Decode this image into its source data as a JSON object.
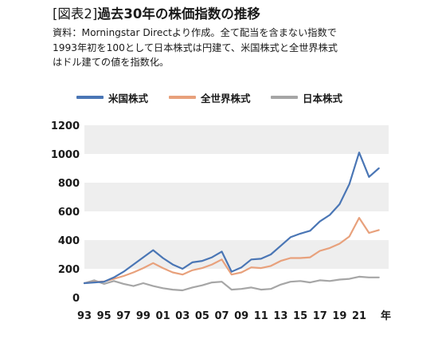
{
  "header": {
    "tag": "[図表2]",
    "title": "過去30年の株価指数の推移",
    "desc_lines": [
      "資料：Morningstar Directより作成。全て配当を含まない指数で",
      "1993年初を100として日本株式は円建て、米国株式と全世界株式",
      "はドル建ての値を指数化。"
    ]
  },
  "legend": [
    {
      "name": "米国株式",
      "color": "#4a76b5"
    },
    {
      "name": "全世界株式",
      "color": "#e8a17c"
    },
    {
      "name": "日本株式",
      "color": "#a6a6a6"
    }
  ],
  "chart_data": {
    "type": "line",
    "title": "過去30年の株価指数の推移",
    "xlabel": "年",
    "ylabel": "",
    "ylim": [
      0,
      1200
    ],
    "xlim": [
      1993,
      2024
    ],
    "yticks": [
      "0",
      "200",
      "400",
      "600",
      "800",
      "1000",
      "1200"
    ],
    "xticks": [
      "93",
      "95",
      "97",
      "99",
      "01",
      "03",
      "05",
      "07",
      "09",
      "11",
      "13",
      "15",
      "17",
      "19",
      "21"
    ],
    "grid": "horizontal-bands",
    "x": [
      1993,
      1994,
      1995,
      1996,
      1997,
      1998,
      1999,
      2000,
      2001,
      2002,
      2003,
      2004,
      2005,
      2006,
      2007,
      2008,
      2009,
      2010,
      2011,
      2012,
      2013,
      2014,
      2015,
      2016,
      2017,
      2018,
      2019,
      2020,
      2021,
      2022,
      2023
    ],
    "series": [
      {
        "name": "米国株式",
        "color": "#4a76b5",
        "values": [
          100,
          105,
          110,
          140,
          180,
          230,
          280,
          330,
          275,
          230,
          200,
          245,
          255,
          280,
          320,
          180,
          210,
          265,
          270,
          300,
          360,
          420,
          445,
          465,
          530,
          575,
          650,
          790,
          1010,
          840,
          900
        ]
      },
      {
        "name": "全世界株式",
        "color": "#e8a17c",
        "values": [
          100,
          108,
          112,
          130,
          150,
          175,
          205,
          240,
          205,
          175,
          160,
          190,
          205,
          230,
          265,
          160,
          175,
          210,
          205,
          220,
          255,
          275,
          275,
          280,
          325,
          345,
          375,
          425,
          555,
          450,
          470
        ]
      },
      {
        "name": "日本株式",
        "color": "#a6a6a6",
        "values": [
          100,
          120,
          95,
          115,
          95,
          80,
          100,
          80,
          65,
          55,
          50,
          70,
          85,
          105,
          110,
          55,
          60,
          70,
          55,
          60,
          90,
          110,
          115,
          105,
          120,
          115,
          125,
          130,
          145,
          140,
          140
        ]
      }
    ]
  }
}
